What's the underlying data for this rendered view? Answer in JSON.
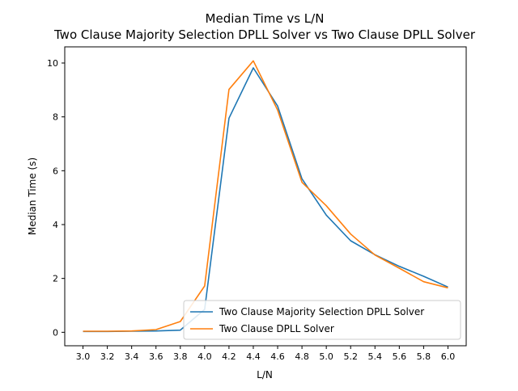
{
  "chart_data": {
    "type": "line",
    "title": "Median Time vs L/N",
    "subtitle": "Two Clause Majority Selection DPLL Solver vs Two Clause DPLL Solver",
    "xlabel": "L/N",
    "ylabel": "Median Time (s)",
    "xlim": [
      2.85,
      6.15
    ],
    "ylim": [
      -0.5,
      10.6
    ],
    "x_ticks": [
      "3.0",
      "3.2",
      "3.4",
      "3.6",
      "3.8",
      "4.0",
      "4.2",
      "4.4",
      "4.6",
      "4.8",
      "5.0",
      "5.2",
      "5.4",
      "5.6",
      "5.8",
      "6.0"
    ],
    "y_ticks": [
      "0",
      "2",
      "4",
      "6",
      "8",
      "10"
    ],
    "x": [
      3.0,
      3.2,
      3.4,
      3.6,
      3.8,
      4.0,
      4.2,
      4.4,
      4.6,
      4.8,
      5.0,
      5.2,
      5.4,
      5.6,
      5.8,
      6.0
    ],
    "grid": false,
    "legend_position": "lower-right",
    "series": [
      {
        "name": "Two Clause Majority Selection DPLL Solver",
        "color": "#1f77b4",
        "values": [
          0.03,
          0.03,
          0.04,
          0.05,
          0.08,
          0.85,
          7.95,
          9.82,
          8.4,
          5.7,
          4.35,
          3.4,
          2.88,
          2.45,
          2.08,
          1.68
        ]
      },
      {
        "name": "Two Clause DPLL Solver",
        "color": "#ff7f0e",
        "values": [
          0.04,
          0.04,
          0.05,
          0.1,
          0.4,
          1.72,
          9.02,
          10.08,
          8.25,
          5.57,
          4.7,
          3.65,
          2.87,
          2.38,
          1.88,
          1.65
        ]
      }
    ]
  }
}
